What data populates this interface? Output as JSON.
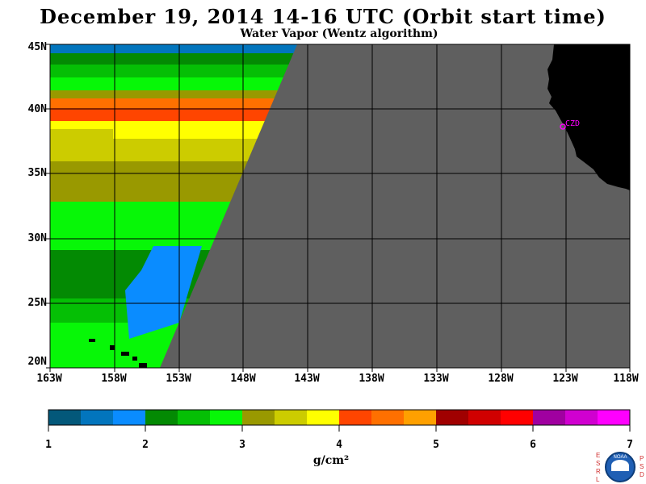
{
  "title": "December 19, 2014  14-16 UTC  (Orbit start time)",
  "subtitle": "Water Vapor (Wentz algorithm)",
  "map": {
    "lat_labels": [
      "45N",
      "40N",
      "35N",
      "30N",
      "25N",
      "20N"
    ],
    "lon_labels": [
      "163W",
      "158W",
      "153W",
      "148W",
      "143W",
      "138W",
      "133W",
      "128W",
      "123W",
      "118W"
    ],
    "station_label": "CZD",
    "colors": {
      "no_data": "#5f5f5f",
      "land": "#000000",
      "station": "#ff00ff",
      "grid": "#000000"
    }
  },
  "colorbar": {
    "labels": [
      "1",
      "2",
      "3",
      "4",
      "5",
      "6",
      "7"
    ],
    "units": "g/cm²",
    "colors": [
      "#03587a",
      "#0275bd",
      "#0a8cff",
      "#038a03",
      "#05bf05",
      "#07f707",
      "#999900",
      "#cccc00",
      "#ffff00",
      "#ff4500",
      "#ff7000",
      "#ffa000",
      "#a00000",
      "#d00000",
      "#ff0000",
      "#a000a0",
      "#d000d0",
      "#ff00ff"
    ]
  },
  "logo": {
    "left_letters": [
      "E",
      "S",
      "R",
      "L"
    ],
    "right_letters": [
      "P",
      "S",
      "D"
    ],
    "seal_text": "NOAA"
  }
}
